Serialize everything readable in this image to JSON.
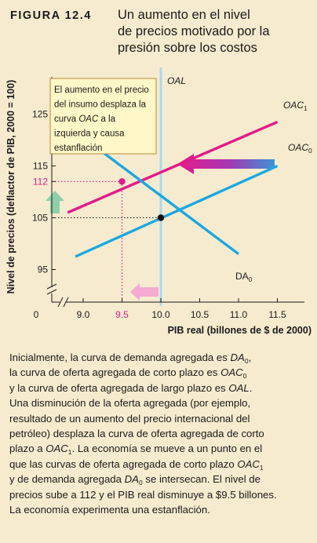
{
  "figure": {
    "label": "FIGURA 12.4",
    "title_lines": [
      "Un aumento en el nivel",
      "de precios motivado por la",
      "presión sobre los costos"
    ]
  },
  "chart_data": {
    "type": "line",
    "xlabel": "PIB real (billones de $ de 2000)",
    "ylabel": "Nivel de precios (deflactor de PIB, 2000 = 100)",
    "x_ticks": [
      "0",
      "9.0",
      "9.5",
      "10.0",
      "10.5",
      "11.0",
      "11.5"
    ],
    "y_ticks": [
      "95",
      "105",
      "112",
      "115",
      "125"
    ],
    "x_axis_break": true,
    "y_axis_break": true,
    "series": [
      {
        "name": "OAC",
        "sub": "0",
        "color": "#1ba8e0",
        "points": [
          [
            8.9,
            97.5
          ],
          [
            11.5,
            115
          ]
        ]
      },
      {
        "name": "OAC",
        "sub": "1",
        "color": "#e31b8a",
        "points": [
          [
            8.8,
            106
          ],
          [
            11.5,
            123.5
          ]
        ]
      },
      {
        "name": "DA",
        "sub": "0",
        "color": "#1ba8e0",
        "points": [
          [
            8.6,
            125
          ],
          [
            11.0,
            98
          ]
        ]
      },
      {
        "name": "OAL",
        "sub": "",
        "color": "#a9d8ef",
        "points": [
          [
            10.0,
            134
          ],
          [
            10.0,
            88
          ]
        ]
      }
    ],
    "equilibria": [
      {
        "x": 10.0,
        "y": 105,
        "color": "#111111"
      },
      {
        "x": 9.5,
        "y": 112,
        "color": "#e31b8a"
      }
    ],
    "highlight_ticks": {
      "x": "9.5",
      "y": "112",
      "color": "#e31b8a"
    },
    "annotation": "El aumento en el precio del insumo desplaza la curva OAC a la izquierda y causa estanflación",
    "colors": {
      "background": "#f7ebcf",
      "annotation_fill": "#fff7c7",
      "annotation_border": "#b58a3a",
      "shift_arrow_right": "#3d93d6",
      "shift_arrow_left": "#e8198b",
      "price_up_arrow": "#8dcfa8",
      "gdp_down_arrow": "#f4aad1"
    }
  },
  "caption": {
    "lines": [
      [
        {
          "t": "Inicialmente, la curva de demanda agregada es "
        },
        {
          "t": "DA",
          "i": true
        },
        {
          "t": "0",
          "sub": true
        },
        {
          "t": ","
        }
      ],
      [
        {
          "t": "la curva de oferta agregada de corto plazo es "
        },
        {
          "t": "OAC",
          "i": true
        },
        {
          "t": "0",
          "sub": true
        }
      ],
      [
        {
          "t": "y la curva de oferta agregada de largo plazo es "
        },
        {
          "t": "OAL",
          "i": true
        },
        {
          "t": "."
        }
      ],
      [
        {
          "t": "Una disminución de la oferta agregada (por ejemplo,"
        }
      ],
      [
        {
          "t": "resultado de un aumento del precio internacional del"
        }
      ],
      [
        {
          "t": "petróleo) desplaza la curva de oferta agregada de corto"
        }
      ],
      [
        {
          "t": "plazo a "
        },
        {
          "t": "OAC",
          "i": true
        },
        {
          "t": "1",
          "sub": true
        },
        {
          "t": ". La economía se mueve a un punto en el"
        }
      ],
      [
        {
          "t": "que las curvas de oferta agregada de corto plazo "
        },
        {
          "t": "OAC",
          "i": true
        },
        {
          "t": "1",
          "sub": true
        }
      ],
      [
        {
          "t": "y de demanda agregada "
        },
        {
          "t": "DA",
          "i": true
        },
        {
          "t": "0",
          "sub": true
        },
        {
          "t": " se intersecan. El nivel de"
        }
      ],
      [
        {
          "t": "precios sube a 112 y el PIB real disminuye a $9.5 billones."
        }
      ],
      [
        {
          "t": "La economía experimenta una estanflación."
        }
      ]
    ]
  }
}
